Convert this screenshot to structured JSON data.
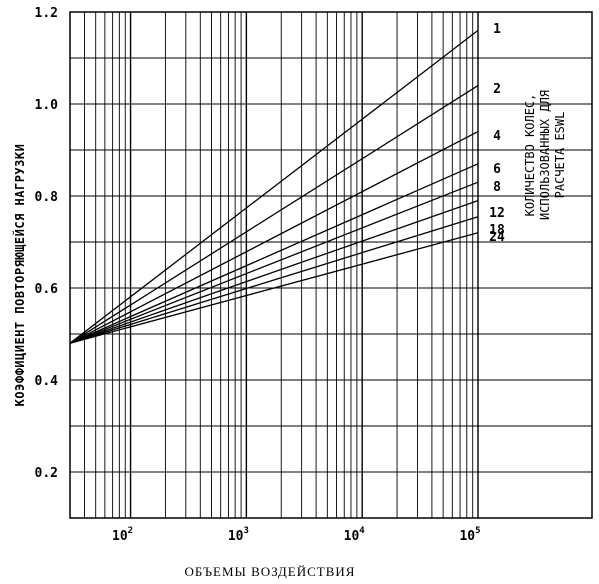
{
  "chart_data": {
    "type": "line",
    "xlabel": "ОБЪЕМЫ ВОЗДЕЙСТВИЯ",
    "ylabel": "КОЭФФИЦИЕНТ ПОВТОРЯЮЩЕЙСЯ НАГРУЗКИ",
    "x_scale": "log",
    "xlim": [
      30,
      100000
    ],
    "ylim": [
      0.1,
      1.2
    ],
    "grid": true,
    "x_ticks": [
      {
        "value": 100,
        "base": "10",
        "exp": "2"
      },
      {
        "value": 1000,
        "base": "10",
        "exp": "3"
      },
      {
        "value": 10000,
        "base": "10",
        "exp": "4"
      },
      {
        "value": 100000,
        "base": "10",
        "exp": "5"
      }
    ],
    "y_ticks": [
      {
        "value": 0.2,
        "label": "0.2"
      },
      {
        "value": 0.4,
        "label": "0.4"
      },
      {
        "value": 0.6,
        "label": "0.6"
      },
      {
        "value": 0.8,
        "label": "0.8"
      },
      {
        "value": 1.0,
        "label": "1.0"
      },
      {
        "value": 1.2,
        "label": "1.2"
      }
    ],
    "legend_title": [
      "КОЛИЧЕСТВО КОЛЕС,",
      "ИСПОЛЬЗОВАННЫХ ДЛЯ",
      "РАСЧЕТА ESWL"
    ],
    "series": [
      {
        "name": "1",
        "points": [
          [
            30,
            0.48
          ],
          [
            100000,
            1.16
          ]
        ]
      },
      {
        "name": "2",
        "points": [
          [
            30,
            0.48
          ],
          [
            100000,
            1.04
          ]
        ]
      },
      {
        "name": "4",
        "points": [
          [
            30,
            0.48
          ],
          [
            100000,
            0.94
          ]
        ]
      },
      {
        "name": "6",
        "points": [
          [
            30,
            0.48
          ],
          [
            100000,
            0.87
          ]
        ]
      },
      {
        "name": "8",
        "points": [
          [
            30,
            0.48
          ],
          [
            100000,
            0.83
          ]
        ]
      },
      {
        "name": "12",
        "points": [
          [
            30,
            0.48
          ],
          [
            100000,
            0.79
          ]
        ]
      },
      {
        "name": "18",
        "points": [
          [
            30,
            0.48
          ],
          [
            100000,
            0.755
          ]
        ]
      },
      {
        "name": "24",
        "points": [
          [
            30,
            0.48
          ],
          [
            100000,
            0.72
          ]
        ]
      }
    ]
  }
}
